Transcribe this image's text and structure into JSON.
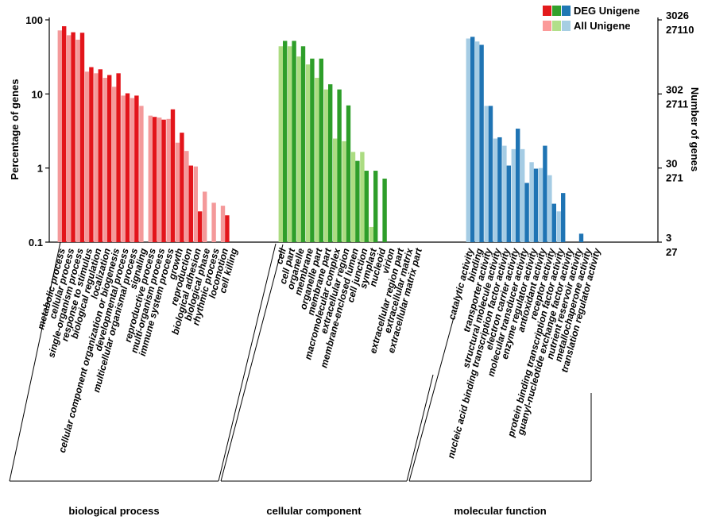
{
  "chart_data": {
    "type": "bar",
    "title": "",
    "ylabel": "Percentage of genes",
    "y2label": "Number of genes",
    "yscale": "log",
    "ylim": [
      0.1,
      100
    ],
    "yticks": [
      {
        "value": 100,
        "label": "100"
      },
      {
        "value": 10,
        "label": "10"
      },
      {
        "value": 1,
        "label": "1"
      },
      {
        "value": 0.1,
        "label": "0.1"
      }
    ],
    "y2ticks": [
      {
        "value": 100,
        "top": "3026",
        "bottom": "27110"
      },
      {
        "value": 10,
        "top": "302",
        "bottom": "2711"
      },
      {
        "value": 1,
        "top": "30",
        "bottom": "271"
      },
      {
        "value": 0.1,
        "top": "3",
        "bottom": "27"
      }
    ],
    "legend": {
      "position": "top-right",
      "entries": [
        {
          "name": "DEG Unigene",
          "colors": [
            "#e31a1c",
            "#33a02c",
            "#1f78b4"
          ]
        },
        {
          "name": "All Unigene",
          "colors": [
            "#fb9a99",
            "#b2df8a",
            "#a6cee3"
          ]
        }
      ]
    },
    "series_names": [
      "All Unigene",
      "DEG Unigene"
    ],
    "groups": [
      {
        "name": "biological process",
        "all_color": "#f4999a",
        "deg_color": "#e3151b",
        "categories": [
          "metabolic process",
          "cellular process",
          "single-organism process",
          "response to stimulus",
          "biological regulation",
          "localization",
          "cellular component organization or biogenesis",
          "developmental process",
          "multicellular organismal process",
          "signaling",
          "reproductive process",
          "multi-organism process",
          "immune system process",
          "growth",
          "reproduction",
          "biological adhesion",
          "biological phase",
          "rhythmic process",
          "locomotion",
          "cell killing"
        ],
        "all": [
          72,
          62,
          54,
          20,
          19,
          16.5,
          12.5,
          9.5,
          8.8,
          6.9,
          5.1,
          4.8,
          4.6,
          2.2,
          1.7,
          1.05,
          0.48,
          0.34,
          0.31,
          null
        ],
        "deg": [
          82,
          68,
          67,
          23,
          21.5,
          18,
          19,
          10.2,
          9.5,
          null,
          4.9,
          4.5,
          6.2,
          3.0,
          1.08,
          0.26,
          null,
          null,
          0.23,
          null
        ]
      },
      {
        "name": "cellular component",
        "all_color": "#acdc82",
        "deg_color": "#2e9e2a",
        "categories": [
          "cell",
          "cell part",
          "organelle",
          "membrane",
          "organelle part",
          "membrane part",
          "macromolecular complex",
          "extracellular region",
          "membrane-enclosed lumen",
          "cell junction",
          "symplast",
          "nucleoid",
          "virion",
          "extracellular region part",
          "extracellular matrix",
          "extracellular matrix part"
        ],
        "all": [
          44,
          44,
          32,
          25,
          16.5,
          11.5,
          2.5,
          2.3,
          1.65,
          1.65,
          0.16,
          null,
          null,
          null,
          null,
          null
        ],
        "deg": [
          52,
          52,
          44,
          30,
          30,
          13.5,
          11.5,
          7.0,
          1.25,
          0.92,
          0.92,
          0.72,
          null,
          null,
          null,
          null
        ]
      },
      {
        "name": "molecular function",
        "all_color": "#a5cce4",
        "deg_color": "#1f74b4",
        "categories": [
          "catalytic activity",
          "binding",
          "transporter activity",
          "structural molecule activity",
          "nucleic acid binding transcription factor activity",
          "electron carrier activity",
          "molecular transducer activity",
          "enzyme regulator activity",
          "antioxidant activity",
          "receptor activity",
          "protein binding transcription factor activity",
          "guanyl-nucleotide exchange factor activity",
          "nutrient reservoir activity",
          "metallochaperone activity",
          "translation regulator activity"
        ],
        "all": [
          56,
          51,
          6.9,
          2.5,
          2.0,
          1.8,
          1.8,
          1.2,
          1.0,
          0.8,
          0.26,
          0.1,
          null,
          null,
          null
        ],
        "deg": [
          59,
          46,
          6.9,
          2.6,
          1.08,
          3.4,
          0.63,
          0.98,
          2.0,
          0.33,
          0.46,
          null,
          0.13,
          null,
          null
        ]
      }
    ]
  }
}
